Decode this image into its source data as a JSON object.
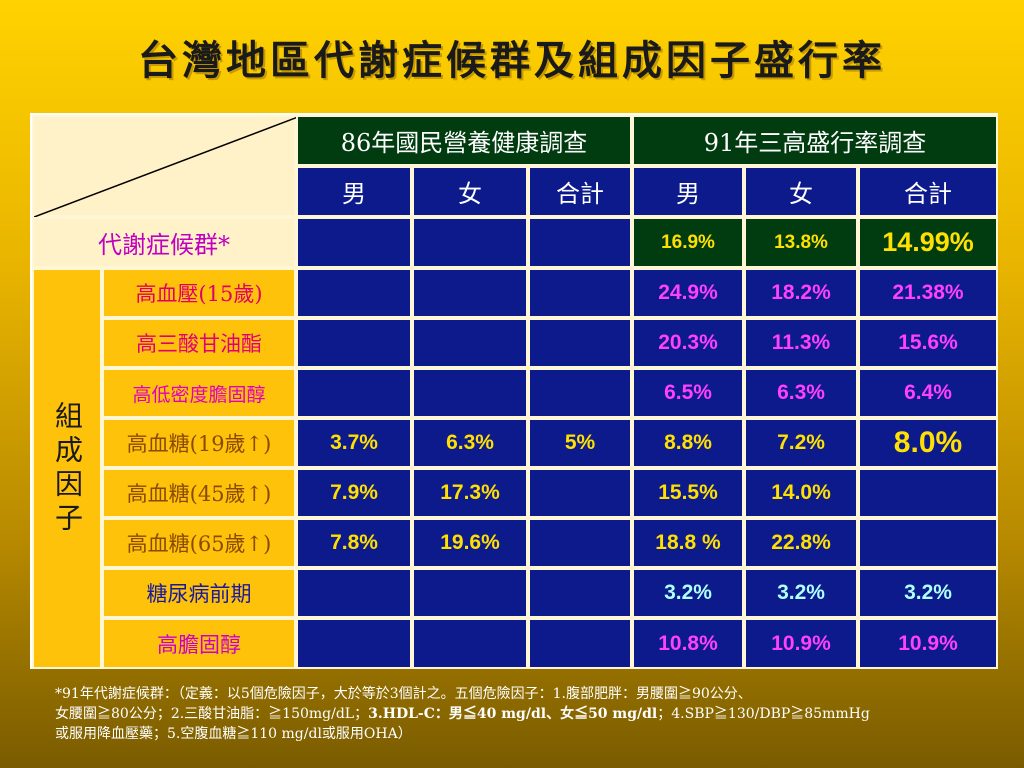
{
  "title": "台灣地區代謝症候群及組成因子盛行率",
  "headers": {
    "survey86": "86年國民營養健康調查",
    "survey91": "91年三高盛行率調查",
    "male": "男",
    "female": "女",
    "total": "合計"
  },
  "side_label": "組成因子",
  "rows": [
    {
      "label": "代謝症候群*",
      "v86": [
        "",
        "",
        ""
      ],
      "v91": [
        "16.9%",
        "13.8%",
        "14.99%"
      ]
    },
    {
      "label": "高血壓(15歲)",
      "v86": [
        "",
        "",
        ""
      ],
      "v91": [
        "24.9%",
        "18.2%",
        "21.38%"
      ]
    },
    {
      "label": "高三酸甘油酯",
      "v86": [
        "",
        "",
        ""
      ],
      "v91": [
        "20.3%",
        "11.3%",
        "15.6%"
      ]
    },
    {
      "label": "高低密度膽固醇",
      "v86": [
        "",
        "",
        ""
      ],
      "v91": [
        "6.5%",
        "6.3%",
        "6.4%"
      ]
    },
    {
      "label": "高血糖(19歲↑)",
      "v86": [
        "3.7%",
        "6.3%",
        "5%"
      ],
      "v91": [
        "8.8%",
        "7.2%",
        "8.0%"
      ]
    },
    {
      "label": "高血糖(45歲↑)",
      "v86": [
        "7.9%",
        "17.3%",
        ""
      ],
      "v91": [
        "15.5%",
        "14.0%",
        ""
      ]
    },
    {
      "label": "高血糖(65歲↑)",
      "v86": [
        "7.8%",
        "19.6%",
        ""
      ],
      "v91": [
        "18.8 %",
        "22.8%",
        ""
      ]
    },
    {
      "label": "糖尿病前期",
      "v86": [
        "",
        "",
        ""
      ],
      "v91": [
        "3.2%",
        "3.2%",
        "3.2%"
      ]
    },
    {
      "label": "高膽固醇",
      "v86": [
        "",
        "",
        ""
      ],
      "v91": [
        "10.8%",
        "10.9%",
        "10.9%"
      ]
    }
  ],
  "colors": {
    "label_metabolic": "#c000c0",
    "label_hypertension": "#e0006a",
    "label_tg": "#e0007a",
    "label_ldl": "#e000c0",
    "label_sugar": "#8a4a00",
    "label_prediabetes": "#1a1a9a",
    "label_chol": "#cc00cc",
    "val_yellow": "#ffe000",
    "val_pink": "#ff40ff",
    "val_cyan": "#b0ffff"
  },
  "footnote": {
    "line1": "*91年代謝症候群：（定義：以5個危險因子，大於等於3個計之。五個危險因子：1.腹部肥胖：男腰圍≧90公分、",
    "line2a": "女腰圍≧80公分；2.三酸甘油脂：≧150mg/dL；",
    "line2b": "3.HDL-C：男≦40 mg/dl、女≦50 mg/dl",
    "line2c": "；4.SBP≧130/DBP≧85mmHg",
    "line3": "或服用降血壓藥；5.空腹血糖≧110 mg/dl或服用OHA）"
  }
}
